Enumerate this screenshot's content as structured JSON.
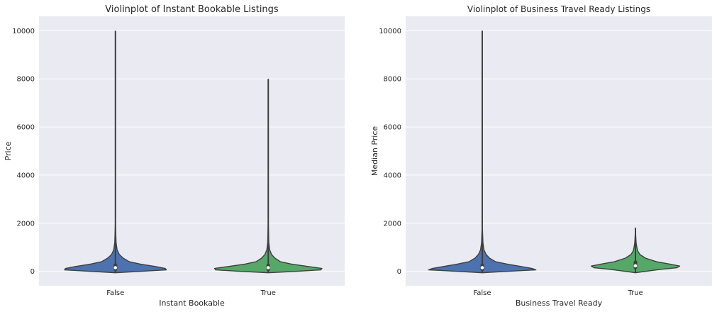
{
  "chart_data": [
    {
      "type": "violin",
      "title": "Violinplot of Instant Bookable Listings",
      "xlabel": "Instant Bookable",
      "ylabel": "Price",
      "categories": [
        "False",
        "True"
      ],
      "ylim": [
        -600,
        10600
      ],
      "yticks": [
        0,
        2000,
        4000,
        6000,
        8000,
        10000
      ],
      "grid": true,
      "background": "#eaeaf2",
      "colors": [
        "#4c72b0",
        "#55a868"
      ],
      "violins": [
        {
          "category": "False",
          "min": -60,
          "max": 10000,
          "median": 150,
          "q1": 80,
          "q3": 260,
          "profile": [
            [
              -60,
              0.0
            ],
            [
              0,
              0.45
            ],
            [
              60,
              0.92
            ],
            [
              120,
              0.9
            ],
            [
              200,
              0.72
            ],
            [
              300,
              0.45
            ],
            [
              400,
              0.25
            ],
            [
              550,
              0.14
            ],
            [
              700,
              0.07
            ],
            [
              900,
              0.03
            ],
            [
              1200,
              0.012
            ],
            [
              2000,
              0.0
            ]
          ]
        },
        {
          "category": "True",
          "min": -60,
          "max": 8000,
          "median": 150,
          "q1": 80,
          "q3": 250,
          "profile": [
            [
              -60,
              0.0
            ],
            [
              0,
              0.5
            ],
            [
              60,
              0.95
            ],
            [
              120,
              0.97
            ],
            [
              200,
              0.72
            ],
            [
              300,
              0.42
            ],
            [
              400,
              0.22
            ],
            [
              550,
              0.12
            ],
            [
              700,
              0.06
            ],
            [
              900,
              0.025
            ],
            [
              1200,
              0.01
            ],
            [
              2000,
              0.0
            ]
          ]
        }
      ]
    },
    {
      "type": "violin",
      "title": "Violinplot of Business Travel Ready Listings",
      "xlabel": "Business Travel Ready",
      "ylabel": "Median Price",
      "categories": [
        "False",
        "True"
      ],
      "ylim": [
        -600,
        10600
      ],
      "yticks": [
        0,
        2000,
        4000,
        6000,
        8000,
        10000
      ],
      "grid": true,
      "background": "#eaeaf2",
      "colors": [
        "#4c72b0",
        "#55a868"
      ],
      "violins": [
        {
          "category": "False",
          "min": -60,
          "max": 10000,
          "median": 150,
          "q1": 80,
          "q3": 260,
          "profile": [
            [
              -60,
              0.0
            ],
            [
              0,
              0.45
            ],
            [
              60,
              0.97
            ],
            [
              120,
              0.9
            ],
            [
              200,
              0.7
            ],
            [
              300,
              0.45
            ],
            [
              400,
              0.24
            ],
            [
              550,
              0.13
            ],
            [
              700,
              0.07
            ],
            [
              900,
              0.03
            ],
            [
              1200,
              0.012
            ],
            [
              2000,
              0.0
            ]
          ]
        },
        {
          "category": "True",
          "min": -60,
          "max": 1800,
          "median": 230,
          "q1": 160,
          "q3": 380,
          "profile": [
            [
              -60,
              0.0
            ],
            [
              0,
              0.18
            ],
            [
              80,
              0.45
            ],
            [
              150,
              0.75
            ],
            [
              220,
              0.8
            ],
            [
              300,
              0.62
            ],
            [
              400,
              0.38
            ],
            [
              550,
              0.18
            ],
            [
              700,
              0.08
            ],
            [
              850,
              0.04
            ],
            [
              1000,
              0.025
            ],
            [
              1200,
              0.012
            ],
            [
              1500,
              0.005
            ],
            [
              1800,
              0.0
            ]
          ]
        }
      ]
    }
  ]
}
